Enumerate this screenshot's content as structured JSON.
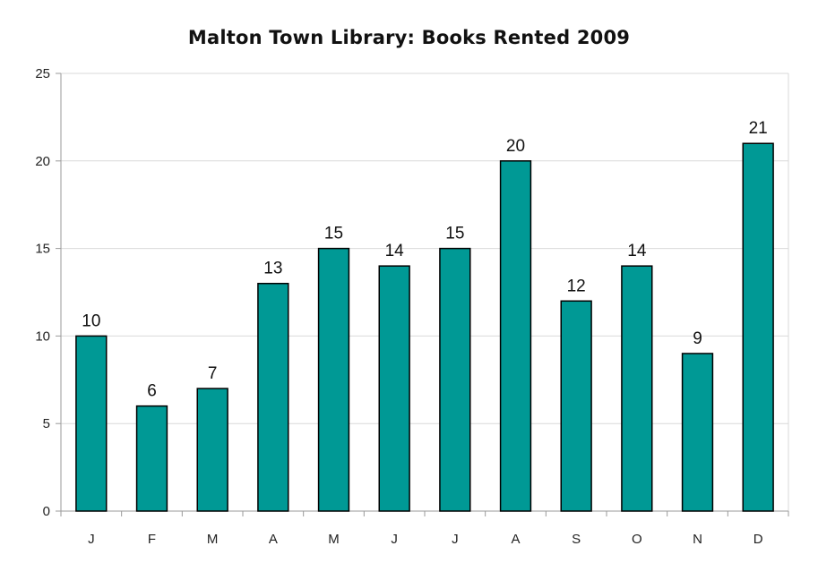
{
  "chart_data": {
    "type": "bar",
    "title": "Malton Town Library: Books Rented 2009",
    "xlabel": "",
    "ylabel": "",
    "categories": [
      "J",
      "F",
      "M",
      "A",
      "M",
      "J",
      "J",
      "A",
      "S",
      "O",
      "N",
      "D"
    ],
    "values": [
      10,
      6,
      7,
      13,
      15,
      14,
      15,
      20,
      12,
      14,
      9,
      21
    ],
    "ylim": [
      0,
      25
    ],
    "yticks": [
      0,
      5,
      10,
      15,
      20,
      25
    ],
    "grid": true,
    "legend": "none",
    "data_labels": true,
    "colors": {
      "bar_fill": "#009995",
      "bar_stroke": "#000000",
      "grid": "#d9d9d9",
      "axis": "#9a9a9a"
    }
  }
}
